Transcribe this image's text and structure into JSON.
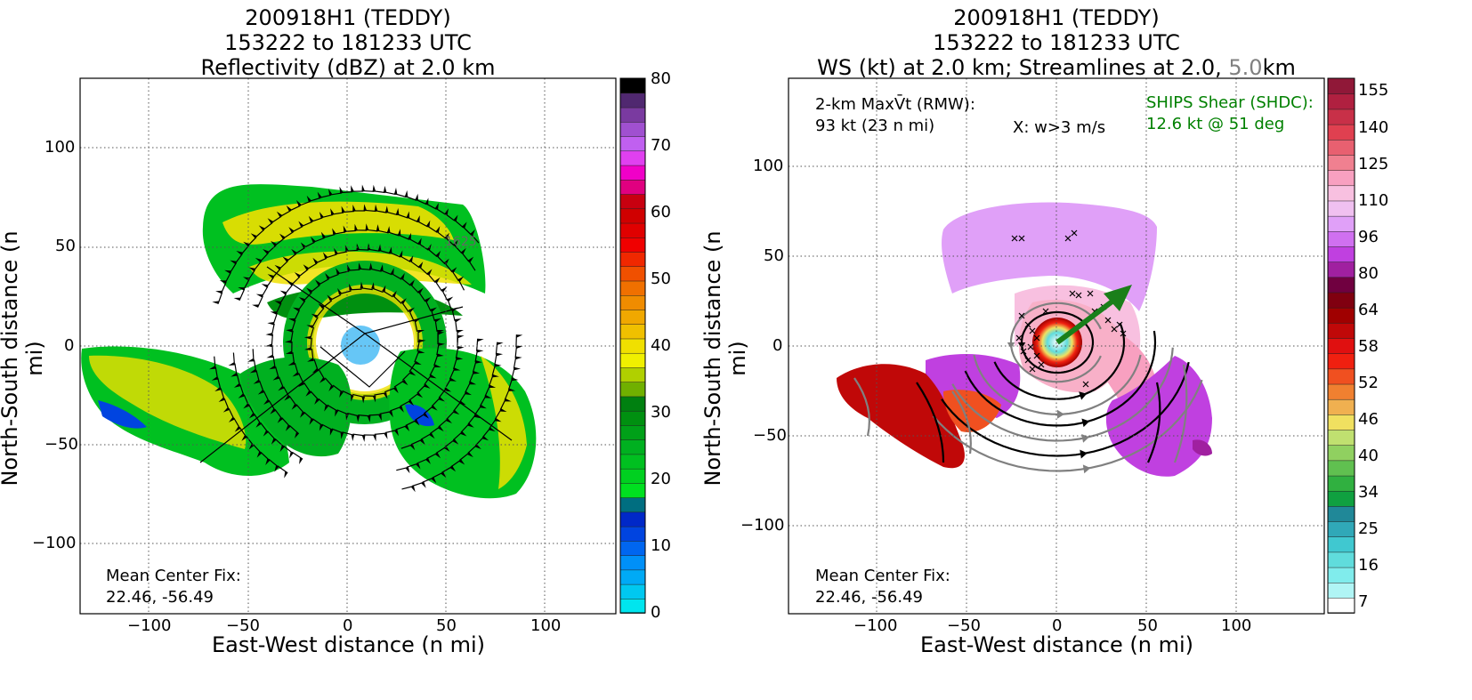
{
  "left": {
    "title_line1": "200918H1 (TEDDY)",
    "title_line2": "153222 to 181233 UTC",
    "title_line3": "Reflectivity (dBZ) at 2.0 km",
    "xlabel": "East-West distance (n mi)",
    "ylabel": "North-South distance (n mi)",
    "xticks": [
      "−100",
      "−50",
      "0",
      "50",
      "100"
    ],
    "yticks": [
      "100",
      "50",
      "0",
      "−50",
      "−100"
    ],
    "cbar_ticks": [
      "80",
      "70",
      "60",
      "50",
      "40",
      "30",
      "20",
      "10",
      "0"
    ],
    "center_fix_label": "Mean Center Fix:",
    "center_fix_value": "22.46, -56.49",
    "flight_labels": [
      "1625"
    ]
  },
  "right": {
    "title_line1": "200918H1 (TEDDY)",
    "title_line2": "153222 to 181233 UTC",
    "title_line3a": "WS (kt) at 2.0 km; Streamlines at 2.0, ",
    "title_line3b": "5.0",
    "title_line3c": "km",
    "xlabel": "East-West distance (n mi)",
    "ylabel": "North-South distance (n mi)",
    "xticks": [
      "−100",
      "−50",
      "0",
      "50",
      "100"
    ],
    "yticks": [
      "100",
      "50",
      "0",
      "−50",
      "−100"
    ],
    "cbar_ticks": [
      "155",
      "140",
      "125",
      "110",
      "96",
      "80",
      "64",
      "58",
      "52",
      "46",
      "40",
      "34",
      "25",
      "16",
      "7"
    ],
    "maxvt_line1": "2-km MaxV̄t (RMW):",
    "maxvt_line2": "93 kt (23 n mi)",
    "w_label": "X: w>3 m/s",
    "shear_line1": "SHIPS Shear (SHDC):",
    "shear_line2": "12.6 kt @ 51 deg",
    "center_fix_label": "Mean Center Fix:",
    "center_fix_value": "22.46, -56.49"
  },
  "colors": {
    "shear": "#008000",
    "streamline_2km": "#000000",
    "streamline_5km": "#808080",
    "refl_scale": [
      "#00e5ee",
      "#00c8f0",
      "#00aaf5",
      "#0090f8",
      "#0066f0",
      "#0044e0",
      "#0028c8",
      "#006e80",
      "#00e020",
      "#00d020",
      "#00c020",
      "#00b020",
      "#00a018",
      "#009010",
      "#008010",
      "#70b000",
      "#b0d000",
      "#f0f000",
      "#f0e000",
      "#f0c000",
      "#f0a800",
      "#f08c00",
      "#f07000",
      "#f05000",
      "#f02800",
      "#f00000",
      "#e00000",
      "#d00000",
      "#c80010",
      "#e00080",
      "#f000c8",
      "#e040f0",
      "#c060f0",
      "#a050d0",
      "#7a3aa0",
      "#502870",
      "#000000"
    ],
    "ws_scale": [
      "#ffffff",
      "#b0f5f5",
      "#80ecec",
      "#60dcdc",
      "#40c8d0",
      "#30a8b8",
      "#208898",
      "#10a040",
      "#30b040",
      "#60c050",
      "#90d060",
      "#c0e070",
      "#f0e060",
      "#f0b050",
      "#f08030",
      "#f05020",
      "#f02010",
      "#e01010",
      "#c00808",
      "#a00000",
      "#800010",
      "#700040",
      "#a020a0",
      "#c040e0",
      "#d070f0",
      "#e0a0f8",
      "#f0c0f0",
      "#f8c0e0",
      "#f8a0c0",
      "#f08090",
      "#e86070",
      "#e04050",
      "#c83048",
      "#b02040",
      "#901838"
    ]
  },
  "chart_data": [
    {
      "type": "heatmap",
      "title": "200918H1 (TEDDY) 153222 to 181233 UTC Reflectivity (dBZ) at 2.0 km",
      "xlabel": "East-West distance (n mi)",
      "ylabel": "North-South distance (n mi)",
      "xlim": [
        -135,
        135
      ],
      "ylim": [
        -135,
        135
      ],
      "colorbar": {
        "label": "dBZ",
        "range": [
          0,
          80
        ],
        "ticks": [
          0,
          10,
          20,
          30,
          40,
          50,
          60,
          70,
          80
        ]
      },
      "grid": true,
      "center_fix": [
        22.46,
        -56.49
      ],
      "flight_track_labels": [
        "1625"
      ]
    },
    {
      "type": "heatmap",
      "title": "200918H1 (TEDDY) 153222 to 181233 UTC WS (kt) at 2.0 km; Streamlines at 2.0, 5.0 km",
      "xlabel": "East-West distance (n mi)",
      "ylabel": "North-South distance (n mi)",
      "xlim": [
        -150,
        150
      ],
      "ylim": [
        -148,
        150
      ],
      "colorbar": {
        "label": "kt",
        "ticks": [
          7,
          16,
          25,
          34,
          40,
          46,
          52,
          58,
          64,
          80,
          96,
          110,
          125,
          140,
          155
        ]
      },
      "grid": true,
      "max_vt_kt": 93,
      "rmw_nmi": 23,
      "shear_kt": 12.6,
      "shear_dir_deg": 51,
      "center_fix": [
        22.46,
        -56.49
      ]
    }
  ]
}
